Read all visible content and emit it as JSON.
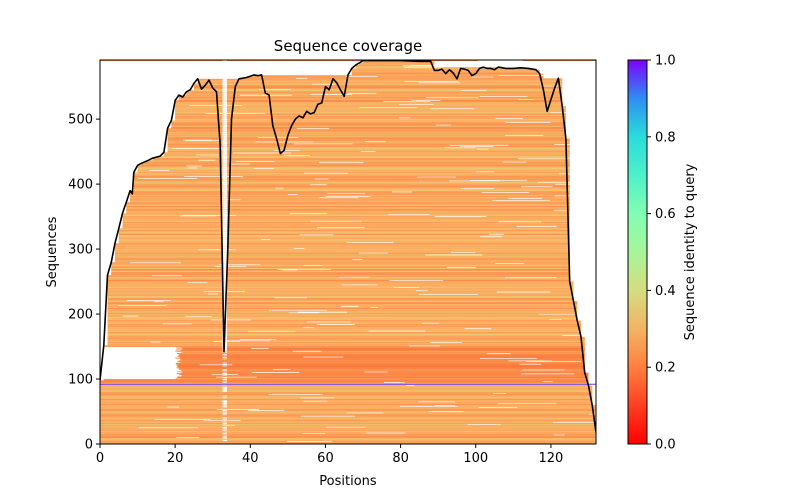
{
  "chart_data": {
    "type": "heatmap",
    "title": "Sequence coverage",
    "xlabel": "Positions",
    "ylabel": "Sequences",
    "xlim": [
      0,
      132
    ],
    "ylim": [
      0,
      591
    ],
    "xticks": [
      0,
      20,
      40,
      60,
      80,
      100,
      120
    ],
    "yticks": [
      0,
      100,
      200,
      300,
      400,
      500
    ],
    "colorbar": {
      "label": "Sequence identity to query",
      "colormap": "rainbow_r",
      "range": [
        0,
        1
      ],
      "ticks": [
        "0.0",
        "0.2",
        "0.4",
        "0.6",
        "0.8",
        "1.0"
      ],
      "colors": [
        "#ff0000",
        "#ff7f40",
        "#d4dd80",
        "#80feb3",
        "#2adcdc",
        "#4a00ff"
      ]
    },
    "query_row": {
      "sequence_index": 92,
      "identity": 1.0,
      "color": "#6a3cff"
    },
    "coverage_line": {
      "name": "coverage",
      "color": "#000000",
      "x": [
        0,
        1,
        2,
        3,
        4,
        5,
        6,
        7,
        8,
        8.6,
        9,
        10,
        11,
        13,
        14,
        16,
        17,
        18,
        19,
        20,
        21,
        22,
        23,
        24,
        25,
        26,
        27,
        28,
        29,
        30,
        31,
        32,
        33,
        34,
        35,
        36,
        37,
        38,
        39,
        40,
        41,
        42,
        43,
        44,
        45,
        46,
        47,
        48,
        49,
        50,
        51,
        52,
        53,
        54,
        55,
        56,
        57,
        58,
        59,
        60,
        61,
        62,
        63,
        64,
        65,
        66,
        67,
        68,
        70,
        75,
        80,
        85,
        88,
        89,
        90,
        91,
        92,
        93,
        94,
        95,
        96,
        97,
        98,
        99,
        100,
        101,
        102,
        103,
        104,
        105,
        106,
        108,
        110,
        112,
        114,
        116,
        117,
        118,
        119,
        120,
        121,
        122,
        123,
        124,
        125,
        126,
        127,
        128,
        129,
        130,
        131,
        132
      ],
      "y": [
        98,
        152,
        260,
        280,
        309,
        332,
        355,
        372,
        390,
        385,
        418,
        429,
        432,
        437,
        440,
        443,
        449,
        486,
        498,
        529,
        537,
        534,
        542,
        545,
        555,
        562,
        546,
        552,
        560,
        548,
        542,
        460,
        142,
        300,
        500,
        550,
        562,
        563,
        564,
        566,
        568,
        567,
        568,
        540,
        537,
        490,
        470,
        447,
        452,
        475,
        490,
        500,
        505,
        502,
        512,
        508,
        510,
        523,
        525,
        550,
        545,
        562,
        556,
        545,
        535,
        568,
        578,
        583,
        590,
        590,
        590,
        589,
        589,
        575,
        575,
        577,
        570,
        576,
        571,
        562,
        578,
        577,
        575,
        567,
        570,
        578,
        580,
        578,
        578,
        576,
        580,
        578,
        578,
        579,
        578,
        576,
        570,
        545,
        512,
        530,
        548,
        563,
        520,
        470,
        250,
        220,
        190,
        165,
        110,
        90,
        60,
        18
      ]
    },
    "rows_note": "Each sequence row spans aligned positions, colored by identity (~0.15–0.3 range, orange)."
  }
}
